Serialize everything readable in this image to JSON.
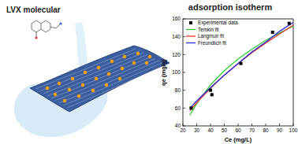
{
  "illustration": {
    "label": "LVX molecular"
  },
  "chart_data": {
    "type": "scatter",
    "title": "adsorption isotherm",
    "x_label": "Ce (mg/L)",
    "y_label": "qe (mg/g)",
    "xlim": [
      20,
      100
    ],
    "xticks": [
      20,
      30,
      40,
      50,
      60,
      70,
      80,
      90,
      100
    ],
    "ylim": [
      40,
      160
    ],
    "yticks": [
      40,
      60,
      80,
      100,
      120,
      140,
      160
    ],
    "grid": false,
    "legend": "upper left",
    "series": [
      {
        "name": "Experimental data",
        "type": "scatter",
        "marker": "square",
        "color": "#000000",
        "x": [
          26,
          40,
          41,
          62,
          85,
          97
        ],
        "values": [
          60,
          80,
          75,
          110,
          145,
          155
        ]
      },
      {
        "name": "Temkin fit",
        "type": "line",
        "color": "#2ecc2e",
        "x": [
          25,
          30,
          40,
          50,
          60,
          70,
          80,
          90,
          100
        ],
        "values": [
          52,
          65,
          86,
          102,
          115,
          126,
          136,
          144,
          152
        ]
      },
      {
        "name": "Langmuir fit",
        "type": "line",
        "color": "#e8342c",
        "x": [
          25,
          30,
          40,
          50,
          60,
          70,
          80,
          90,
          100
        ],
        "values": [
          57,
          66,
          82,
          97,
          110,
          122,
          133,
          143,
          153
        ]
      },
      {
        "name": "Freundlich fit",
        "type": "line",
        "color": "#2b2bd6",
        "x": [
          25,
          30,
          40,
          50,
          60,
          70,
          80,
          90,
          100
        ],
        "values": [
          60,
          68,
          83,
          97,
          110,
          123,
          134,
          146,
          156
        ]
      }
    ]
  }
}
